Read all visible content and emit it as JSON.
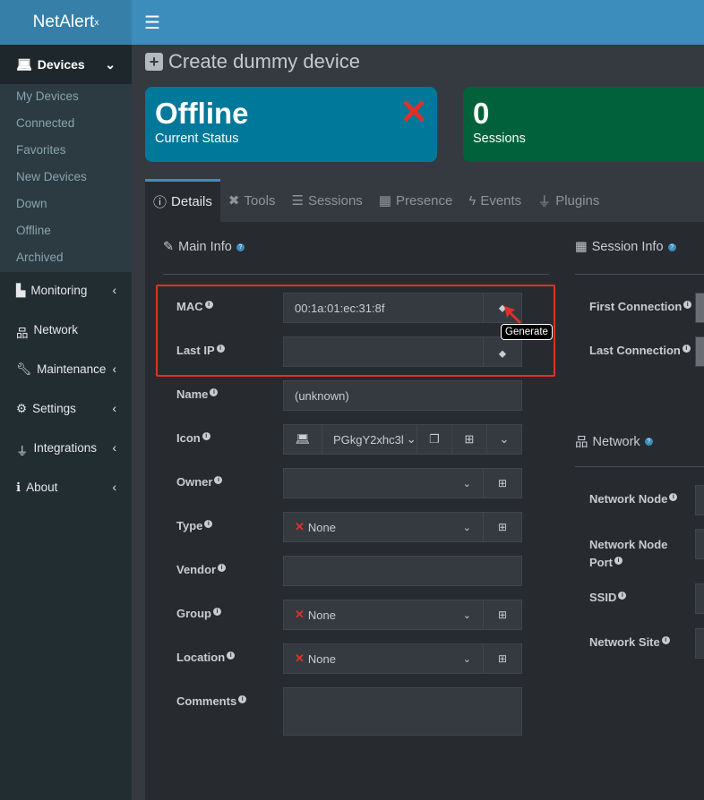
{
  "app": {
    "logo": "NetAlert",
    "logo_sup": "x"
  },
  "sidebar": {
    "active": {
      "label": "Devices"
    },
    "sub": [
      "My Devices",
      "Connected",
      "Favorites",
      "New Devices",
      "Down",
      "Offline",
      "Archived"
    ],
    "items": [
      {
        "label": "Monitoring",
        "chevron": true
      },
      {
        "label": "Network",
        "chevron": false
      },
      {
        "label": "Maintenance",
        "chevron": true
      },
      {
        "label": "Settings",
        "chevron": true
      },
      {
        "label": "Integrations",
        "chevron": true
      },
      {
        "label": "About",
        "chevron": true
      }
    ]
  },
  "page": {
    "title": "Create dummy device"
  },
  "status": {
    "value": "Offline",
    "label": "Current Status",
    "color": "#00789a"
  },
  "sessions": {
    "value": "0",
    "label": "Sessions",
    "color": "#00613a"
  },
  "tabs": [
    "Details",
    "Tools",
    "Sessions",
    "Presence",
    "Events",
    "Plugins"
  ],
  "main_info": {
    "title": "Main Info",
    "fields": {
      "mac": {
        "label": "MAC",
        "value": "00:1a:01:ec:31:8f"
      },
      "last_ip": {
        "label": "Last IP",
        "value": ""
      },
      "name": {
        "label": "Name",
        "value": "(unknown)"
      },
      "icon": {
        "label": "Icon",
        "value": "PGkgY2xhc3l"
      },
      "owner": {
        "label": "Owner",
        "value": ""
      },
      "type": {
        "label": "Type",
        "value": "None"
      },
      "vendor": {
        "label": "Vendor",
        "value": ""
      },
      "group": {
        "label": "Group",
        "value": "None"
      },
      "location": {
        "label": "Location",
        "value": "None"
      },
      "comments": {
        "label": "Comments",
        "value": ""
      }
    },
    "tooltip": "Generate"
  },
  "session_info": {
    "title": "Session Info",
    "first": "First Connection",
    "last": "Last Connection"
  },
  "network": {
    "title": "Network",
    "node": "Network Node",
    "port": "Network Node Port",
    "ssid": "SSID",
    "site": "Network Site"
  }
}
